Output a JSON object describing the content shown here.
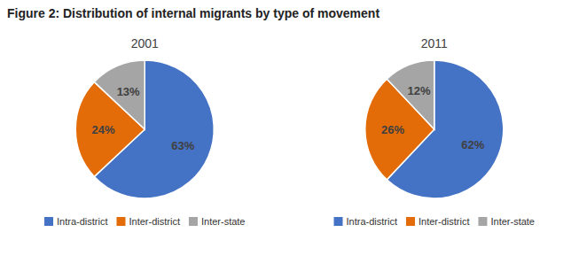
{
  "chart_data": {
    "type": "pie",
    "title": "Figure 2: Distribution of internal migrants by type of movement",
    "categories": [
      "Intra-district",
      "Inter-district",
      "Inter-state"
    ],
    "colors": [
      "#4472C4",
      "#E36C09",
      "#A5A5A5"
    ],
    "series": [
      {
        "name": "2001",
        "values": [
          63,
          24,
          13
        ],
        "value_labels": [
          "63%",
          "24%",
          "13%"
        ]
      },
      {
        "name": "2011",
        "values": [
          62,
          26,
          12
        ],
        "value_labels": [
          "62%",
          "26%",
          "12%"
        ]
      }
    ],
    "data_labels": true,
    "legend": "bottom"
  }
}
